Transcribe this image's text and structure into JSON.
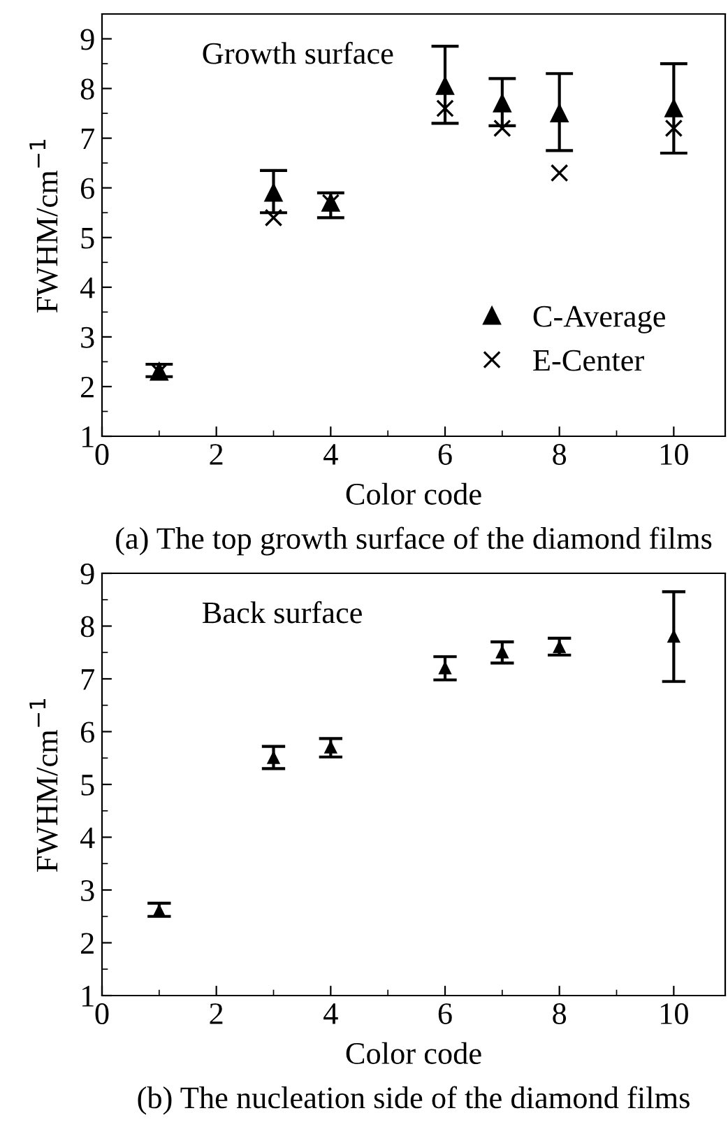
{
  "chart_data": [
    {
      "type": "scatter",
      "annotations": [
        "Growth surface",
        "(a) The top growth surface of the diamond films"
      ],
      "xlabel": "Color code",
      "ylabel": "FWHM/cm$^{−1}$",
      "xlim": [
        0,
        10.9
      ],
      "ylim": [
        1,
        9.5
      ],
      "xticks": [
        0,
        2,
        4,
        6,
        8,
        10
      ],
      "yticks": [
        1,
        2,
        3,
        4,
        5,
        6,
        7,
        8,
        9
      ],
      "legend": "bottom right",
      "grid": false,
      "x": [
        1,
        3,
        4,
        6,
        7,
        8,
        10
      ],
      "series": [
        {
          "name": "C-Average",
          "color": "#000000",
          "marker": "triangle",
          "values": [
            2.3,
            5.9,
            5.7,
            8.05,
            7.7,
            7.5,
            7.6
          ],
          "errors": [
            [
              2.2,
              2.45
            ],
            [
              5.5,
              6.35
            ],
            [
              5.4,
              5.9
            ],
            [
              7.3,
              8.85
            ],
            [
              7.25,
              8.2
            ],
            [
              6.75,
              8.3
            ],
            [
              6.7,
              8.5
            ]
          ]
        },
        {
          "name": "E-Center",
          "color": "#000000",
          "marker": "cross",
          "values": [
            2.3,
            5.4,
            5.7,
            7.6,
            7.2,
            6.3,
            7.2
          ]
        }
      ]
    },
    {
      "type": "scatter",
      "annotations": [
        "Back surface",
        "(b) The nucleation side of the diamond films"
      ],
      "xlabel": "Color code",
      "ylabel": "FWHM/cm$^{−1}$",
      "xlim": [
        0,
        10.9
      ],
      "ylim": [
        1,
        9
      ],
      "xticks": [
        0,
        2,
        4,
        6,
        8,
        10
      ],
      "yticks": [
        1,
        2,
        3,
        4,
        5,
        6,
        7,
        8,
        9
      ],
      "legend": false,
      "grid": false,
      "x": [
        1,
        3,
        4,
        6,
        7,
        8,
        10
      ],
      "series": [
        {
          "color": "#000000",
          "marker": "triangle",
          "values": [
            2.6,
            5.5,
            5.7,
            7.2,
            7.5,
            7.6,
            7.8
          ],
          "errors": [
            [
              2.5,
              2.75
            ],
            [
              5.3,
              5.72
            ],
            [
              5.52,
              5.87
            ],
            [
              6.98,
              7.42
            ],
            [
              7.3,
              7.7
            ],
            [
              7.45,
              7.77
            ],
            [
              6.95,
              8.65
            ]
          ]
        }
      ]
    }
  ]
}
